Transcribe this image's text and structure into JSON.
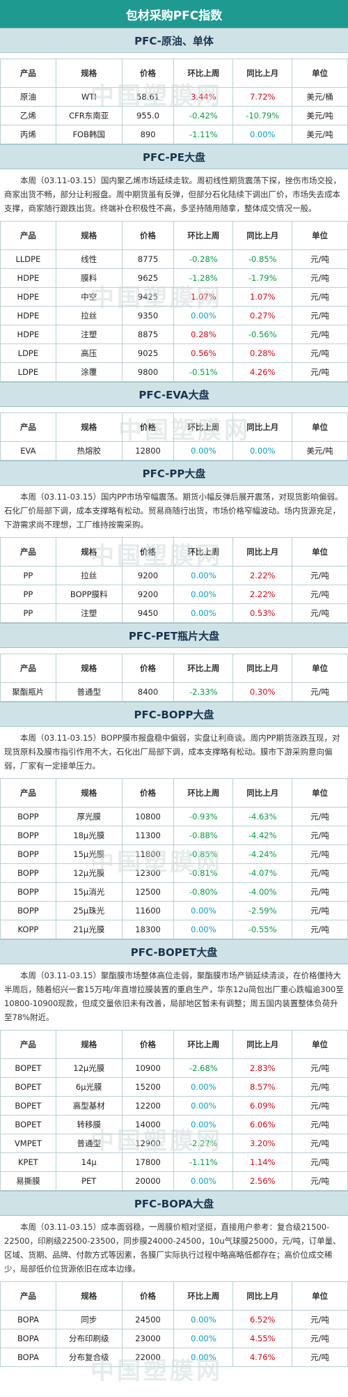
{
  "title": "包材采购PFC指数",
  "watermark": "中国塑膜网",
  "headers": [
    "产品",
    "规格",
    "价格",
    "环比上周",
    "同比上月",
    "单位"
  ],
  "sections": [
    {
      "title": "PFC-原油、单体",
      "para": "",
      "rows": [
        [
          "原油",
          "WTI",
          "58.61",
          "3.44%",
          "7.72%",
          "美元/桶"
        ],
        [
          "乙烯",
          "CFR东南亚",
          "955.0",
          "-0.42%",
          "-10.79%",
          "美元/吨"
        ],
        [
          "丙烯",
          "FOB韩国",
          "890",
          "-1.11%",
          "0.00%",
          "美元/吨"
        ]
      ]
    },
    {
      "title": "PFC-PE大盘",
      "para": "本周（03.11-03.15）国内聚乙烯市场延续走软。周初线性期货震荡下探，挫伤市场交投，商家出货不畅，部分让利报盘。周中期货虽有反弹，但部分石化陆续下调出厂价，市场失去成本支撑，商家随行跟跌出货。终端补仓积极性不高，多坚持随用随拿，整体成交情况一般。",
      "rows": [
        [
          "LLDPE",
          "线性",
          "8775",
          "-0.28%",
          "-0.85%",
          "元/吨"
        ],
        [
          "HDPE",
          "膜料",
          "9625",
          "-1.28%",
          "-1.79%",
          "元/吨"
        ],
        [
          "HDPE",
          "中空",
          "9425",
          "1.07%",
          "1.07%",
          "元/吨"
        ],
        [
          "HDPE",
          "拉丝",
          "9350",
          "0.00%",
          "0.27%",
          "元/吨"
        ],
        [
          "HDPE",
          "注塑",
          "8875",
          "0.28%",
          "-0.56%",
          "元/吨"
        ],
        [
          "LDPE",
          "高压",
          "9025",
          "0.56%",
          "0.28%",
          "元/吨"
        ],
        [
          "LDPE",
          "涂覆",
          "9800",
          "-0.51%",
          "4.26%",
          "元/吨"
        ]
      ]
    },
    {
      "title": "PFC-EVA大盘",
      "para": "",
      "rows": [
        [
          "EVA",
          "热熔胶",
          "12800",
          "0.00%",
          "0.00%",
          "美元/吨"
        ]
      ]
    },
    {
      "title": "PFC-PP大盘",
      "para": "本周（03.11-03.15）国内PP市场窄幅震荡。期货小幅反弹后展开震荡，对现货影响偏弱。石化厂价局部下调，成本支撑略有松动。贸易商随行出货，市场价格窄幅波动。场内货源充足，下游需求尚不理想，工厂维持按需采购。",
      "rows": [
        [
          "PP",
          "拉丝",
          "9200",
          "0.00%",
          "2.22%",
          "元/吨"
        ],
        [
          "PP",
          "BOPP膜料",
          "9200",
          "0.00%",
          "2.22%",
          "元/吨"
        ],
        [
          "PP",
          "注塑",
          "9450",
          "0.00%",
          "0.53%",
          "元/吨"
        ]
      ]
    },
    {
      "title": "PFC-PET瓶片大盘",
      "para": "",
      "rows": [
        [
          "聚酯瓶片",
          "普通型",
          "8400",
          "-2.33%",
          "0.30%",
          "元/吨"
        ]
      ]
    },
    {
      "title": "PFC-BOPP大盘",
      "para": "本周（03.11-03.15）BOPP膜市报盘稳中偏弱，实盘让利商谈。周内PP期货涨跌互现，对现货原料及膜市指引作用不大，石化出厂局部下调，成本支撑略有松动。膜市下游采购意向偏弱，厂家有一定接单压力。",
      "rows": [
        [
          "BOPP",
          "厚光膜",
          "10800",
          "-0.93%",
          "-4.63%",
          "元/吨"
        ],
        [
          "BOPP",
          "18μ光膜",
          "11300",
          "-0.88%",
          "-4.42%",
          "元/吨"
        ],
        [
          "BOPP",
          "15μ光膜",
          "11800",
          "-0.85%",
          "-4.24%",
          "元/吨"
        ],
        [
          "BOPP",
          "12μ光膜",
          "12300",
          "-0.81%",
          "-4.07%",
          "元/吨"
        ],
        [
          "BOPP",
          "15μ消光",
          "12500",
          "-0.80%",
          "-4.00%",
          "元/吨"
        ],
        [
          "BOPP",
          "25μ珠光",
          "11600",
          "0.00%",
          "-2.59%",
          "元/吨"
        ],
        [
          "KOPP",
          "21μ光膜",
          "18300",
          "0.00%",
          "-0.55%",
          "元/吨"
        ]
      ]
    },
    {
      "title": "PFC-BOPET大盘",
      "para": "本周（03.11-03.15）聚酯膜市场整体高位走弱，聚酯膜市场产销延续清淡，在价格僵持大半周后，随着绍兴一套15万吨/年直增拉膜装置的重启生产，华东12u简包出厂重心跌幅逾300至10800-10900现款，但成交量依旧未有改善，局部地区暂未有调整；周五国内装置整体负荷升至78%附近。",
      "rows": [
        [
          "BOPET",
          "12μ光膜",
          "10900",
          "-2.68%",
          "2.83%",
          "元/吨"
        ],
        [
          "BOPET",
          "6μ光膜",
          "15200",
          "0.00%",
          "8.57%",
          "元/吨"
        ],
        [
          "BOPET",
          "高型基材",
          "12200",
          "0.00%",
          "6.09%",
          "元/吨"
        ],
        [
          "BOPET",
          "转移膜",
          "14000",
          "0.00%",
          "6.06%",
          "元/吨"
        ],
        [
          "VMPET",
          "普通型",
          "12900",
          "-2.27%",
          "3.20%",
          "元/吨"
        ],
        [
          "KPET",
          "14μ",
          "17800",
          "-1.11%",
          "1.14%",
          "元/吨"
        ],
        [
          "易撕膜",
          "PET",
          "20000",
          "0.00%",
          "2.56%",
          "元/吨"
        ]
      ]
    },
    {
      "title": "PFC-BOPA大盘",
      "para": "本周（03.11-03.15）成本面弱稳，一周膜价相对坚挺，直接用户参考：复合级21500-22500，印刷级22500-23500，同步膜24000-24500，10u气球膜25000，元/吨，订单量、区域、货期、品牌、付款方式等因素，各膜厂实际执行过程中略高略低都存在；高价位成交稀少，局部低价位货源依旧在成本边缘。",
      "rows": [
        [
          "BOPA",
          "同步",
          "24500",
          "0.00%",
          "6.52%",
          "元/吨"
        ],
        [
          "BOPA",
          "分布印刷级",
          "23000",
          "0.00%",
          "4.55%",
          "元/吨"
        ],
        [
          "BOPA",
          "分布复合级",
          "22000",
          "0.00%",
          "4.76%",
          "元/吨"
        ]
      ]
    }
  ]
}
